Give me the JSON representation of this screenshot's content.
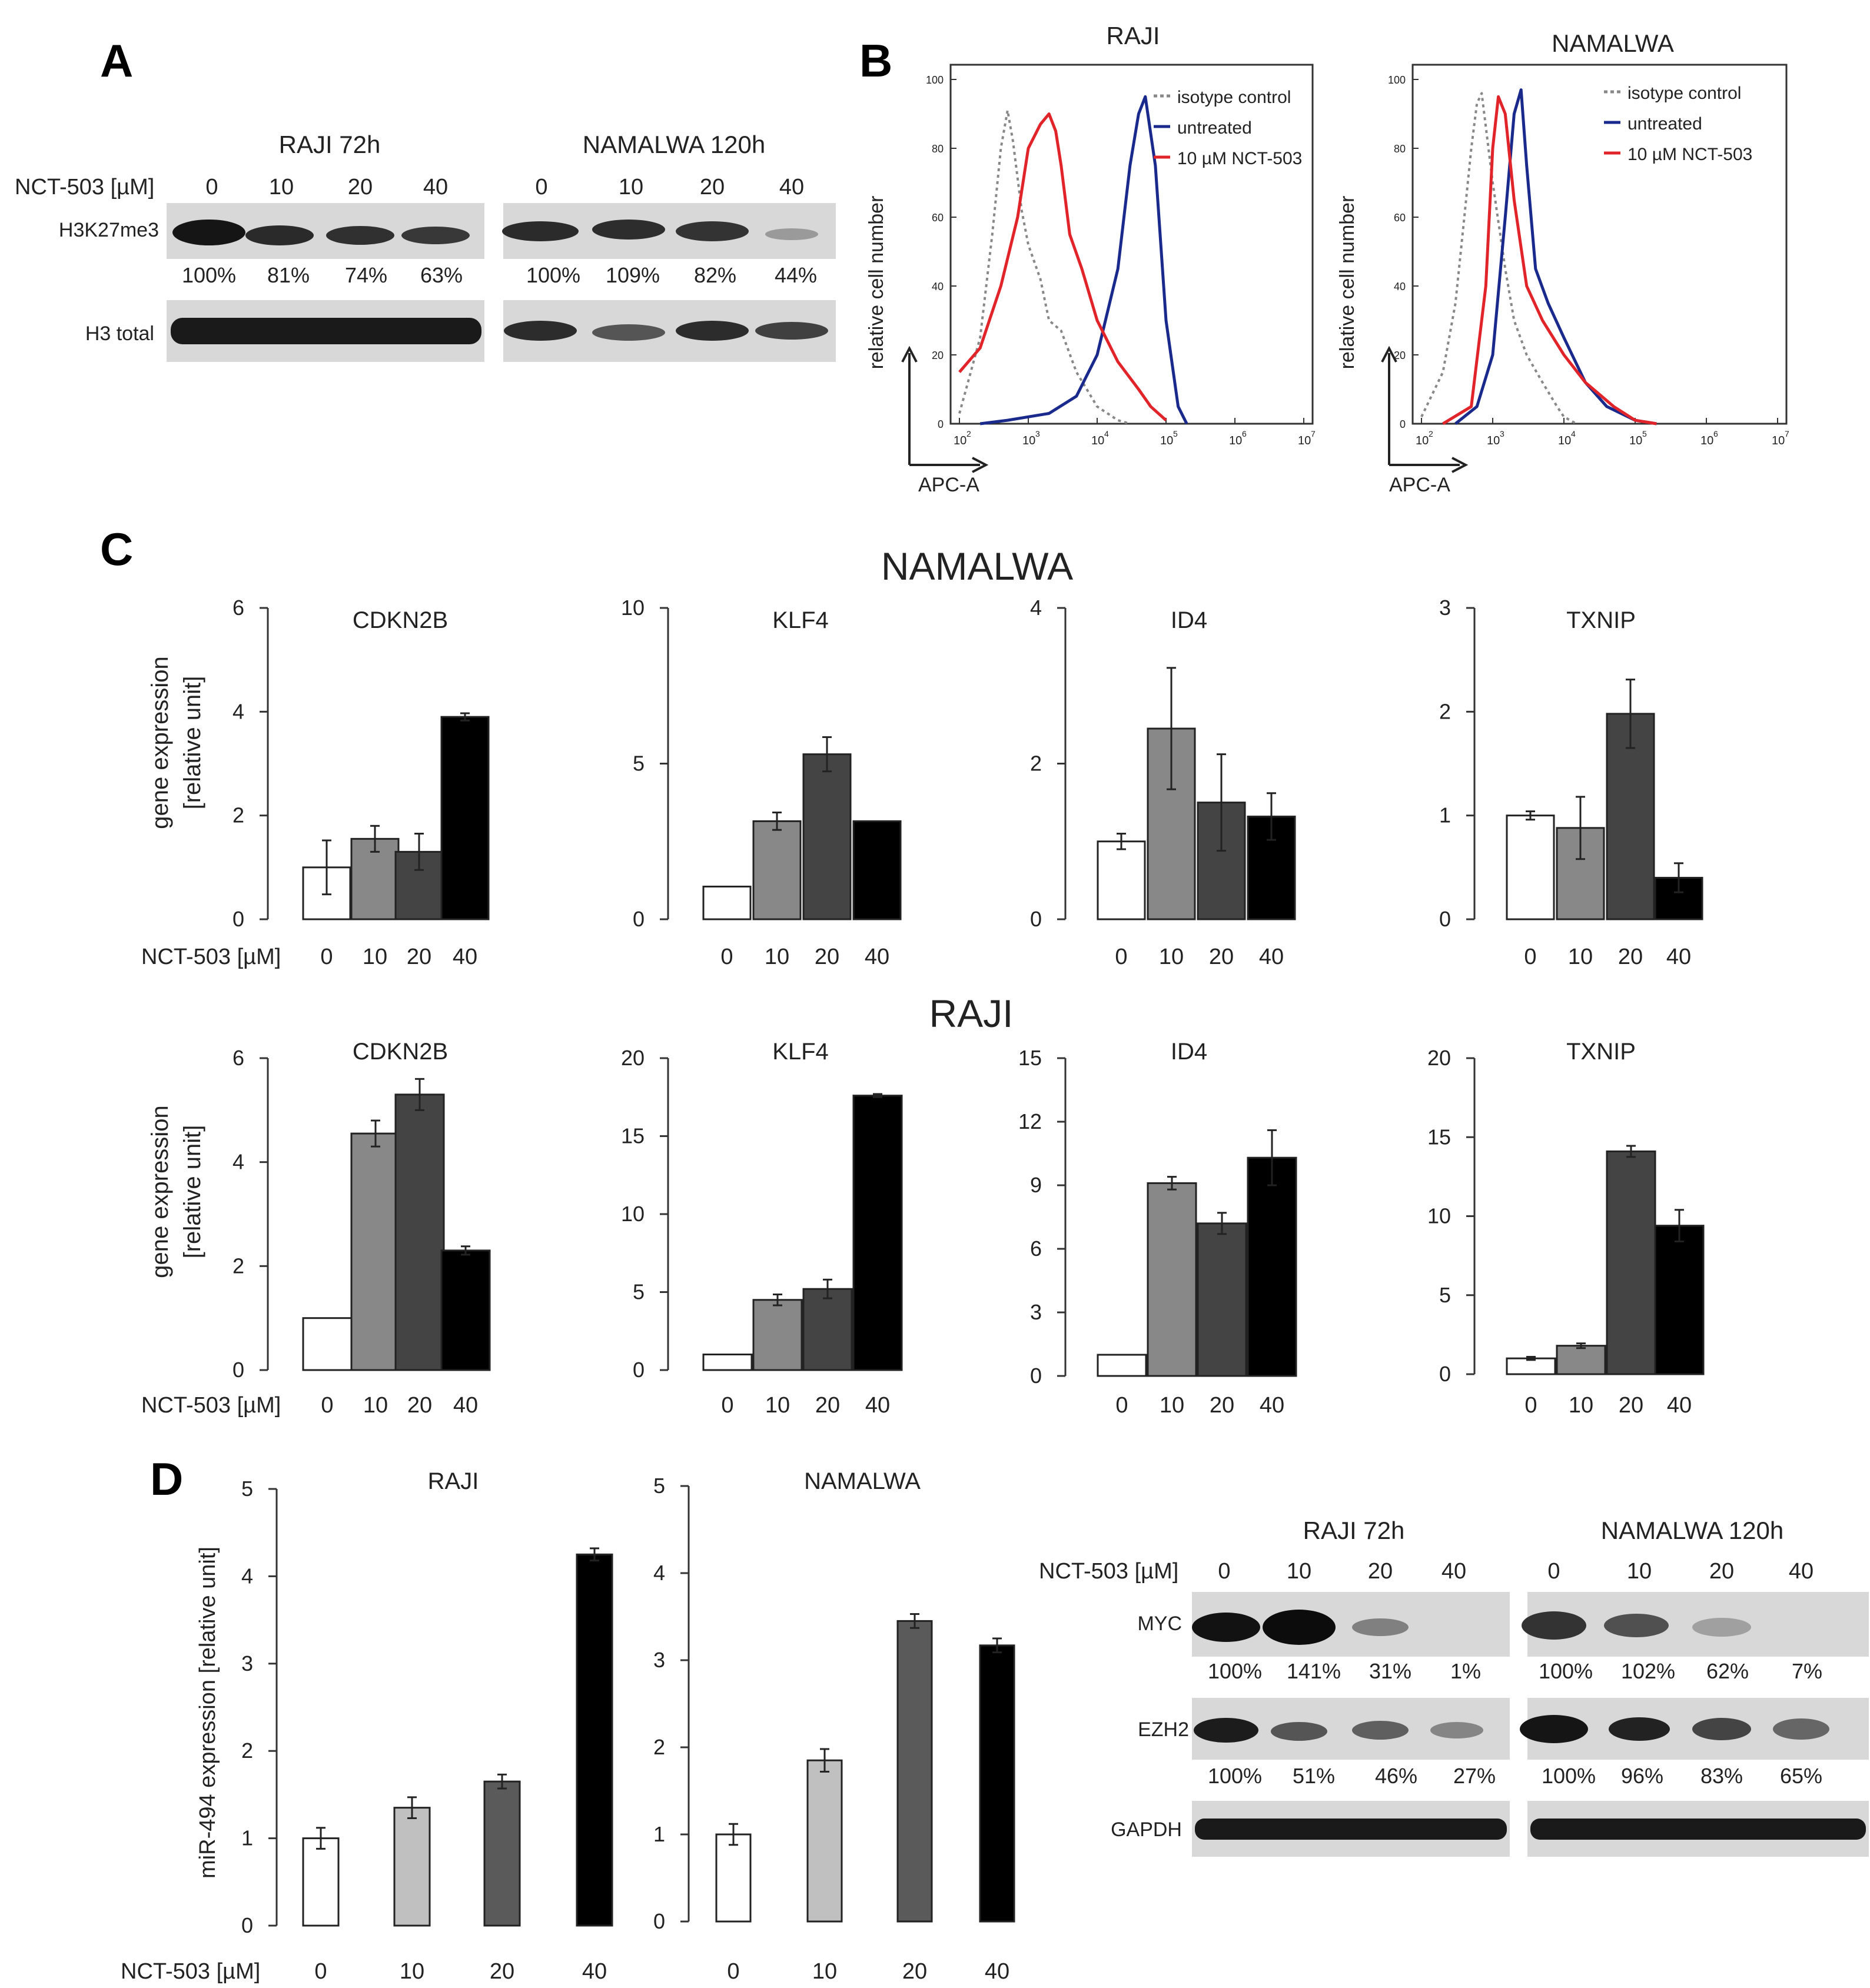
{
  "panels": {
    "a": "A",
    "b": "B",
    "c": "C",
    "d": "D"
  },
  "colors": {
    "red": "#e0242a",
    "blue": "#1a2a8c",
    "grey": "#888888",
    "bar0": "#ffffff",
    "bar10": "#888888",
    "bar20": "#444444",
    "bar40": "#000000",
    "dbar10": "#c0c0c0",
    "dbar20": "#5a5a5a"
  },
  "panelA": {
    "dose_label": "NCT-503 [µM]",
    "raji_title": "RAJI 72h",
    "namalwa_title": "NAMALWA 120h",
    "doses": [
      "0",
      "10",
      "20",
      "40"
    ],
    "row1_label": "H3K27me3",
    "row2_label": "H3 total",
    "raji_pct": [
      "100%",
      "81%",
      "74%",
      "63%"
    ],
    "namalwa_pct": [
      "100%",
      "109%",
      "82%",
      "44%"
    ]
  },
  "panelB": {
    "ylabel": "relative cell number",
    "xlabel": "APC-A",
    "yticks": [
      "0",
      "20",
      "40",
      "60",
      "80",
      "100"
    ],
    "xticks": [
      "10",
      "10",
      "10",
      "10",
      "10",
      "10"
    ],
    "xexp": [
      "2",
      "3",
      "4",
      "5",
      "6",
      "7"
    ],
    "legend": [
      "isotype control",
      "untreated",
      "10 µM NCT-503"
    ],
    "plots": [
      "RAJI",
      "NAMALWA"
    ]
  },
  "panelC": {
    "namalwa_title": "NAMALWA",
    "raji_title": "RAJI",
    "ylabel1": "gene expression",
    "ylabel2": "[relative unit]",
    "dose_label": "NCT-503 [µM]"
  },
  "panelD": {
    "ylabel": "miR-494 expression [relative unit]",
    "dose_label": "NCT-503 [µM]",
    "blot": {
      "raji_title": "RAJI 72h",
      "namalwa_title": "NAMALWA 120h",
      "dose_label": "NCT-503 [µM]",
      "doses": [
        "0",
        "10",
        "20",
        "40"
      ],
      "myc_label": "MYC",
      "ezh2_label": "EZH2",
      "gapdh_label": "GAPDH",
      "raji_myc": [
        "100%",
        "141%",
        "31%",
        "1%"
      ],
      "namalwa_myc": [
        "100%",
        "102%",
        "62%",
        "7%"
      ],
      "raji_ezh2": [
        "100%",
        "51%",
        "46%",
        "27%"
      ],
      "namalwa_ezh2": [
        "100%",
        "96%",
        "83%",
        "65%"
      ]
    }
  },
  "chart_data": [
    {
      "type": "line",
      "title": "RAJI",
      "xlabel": "APC-A",
      "ylabel": "relative cell number",
      "x_scale": "log10",
      "xlim": [
        100,
        10000000
      ],
      "ylim": [
        0,
        100
      ],
      "series": [
        {
          "name": "isotype control",
          "style": "dotted",
          "x": [
            100,
            200,
            300,
            400,
            500,
            600,
            800,
            1000,
            1500,
            2000,
            3000,
            5000,
            10000,
            20000,
            30000
          ],
          "y": [
            3,
            25,
            55,
            80,
            91,
            82,
            62,
            52,
            42,
            30,
            27,
            15,
            5,
            1,
            0
          ]
        },
        {
          "name": "untreated",
          "style": "solid",
          "x": [
            200,
            500,
            1000,
            2000,
            5000,
            10000,
            20000,
            30000,
            40000,
            50000,
            70000,
            100000,
            150000,
            200000
          ],
          "y": [
            0,
            1,
            2,
            3,
            8,
            20,
            45,
            75,
            90,
            95,
            75,
            30,
            5,
            0
          ]
        },
        {
          "name": "10 µM NCT-503",
          "style": "solid",
          "x": [
            100,
            200,
            400,
            700,
            1000,
            1500,
            2000,
            2500,
            3000,
            4000,
            6000,
            10000,
            20000,
            40000,
            60000,
            100000
          ],
          "y": [
            15,
            22,
            40,
            60,
            80,
            87,
            90,
            85,
            75,
            55,
            45,
            30,
            18,
            10,
            5,
            1
          ]
        }
      ]
    },
    {
      "type": "line",
      "title": "NAMALWA",
      "xlabel": "APC-A",
      "ylabel": "relative cell number",
      "x_scale": "log10",
      "xlim": [
        100,
        10000000
      ],
      "ylim": [
        0,
        100
      ],
      "series": [
        {
          "name": "isotype control",
          "style": "dotted",
          "x": [
            100,
            200,
            300,
            400,
            500,
            600,
            700,
            1000,
            1500,
            2000,
            3000,
            5000,
            8000,
            10000,
            15000
          ],
          "y": [
            2,
            15,
            35,
            60,
            80,
            93,
            96,
            70,
            45,
            30,
            20,
            12,
            5,
            2,
            0
          ]
        },
        {
          "name": "untreated",
          "style": "solid",
          "x": [
            300,
            600,
            1000,
            1500,
            2000,
            2500,
            3000,
            4000,
            6000,
            10000,
            20000,
            40000,
            100000,
            200000
          ],
          "y": [
            0,
            5,
            20,
            60,
            90,
            97,
            75,
            45,
            35,
            25,
            12,
            5,
            1,
            0
          ]
        },
        {
          "name": "10 µM NCT-503",
          "style": "solid",
          "x": [
            200,
            500,
            800,
            1000,
            1200,
            1500,
            2000,
            3000,
            5000,
            10000,
            20000,
            50000,
            100000,
            200000
          ],
          "y": [
            0,
            5,
            40,
            80,
            95,
            90,
            65,
            40,
            30,
            20,
            12,
            5,
            1,
            0
          ]
        }
      ]
    },
    {
      "type": "bar",
      "group": "NAMALWA",
      "title": "CDKN2B",
      "categories": [
        "0",
        "10",
        "20",
        "40"
      ],
      "values": [
        1.0,
        1.55,
        1.3,
        3.9
      ],
      "errors": [
        0.52,
        0.25,
        0.35,
        0.07
      ],
      "ylim": [
        0,
        6
      ],
      "yticks": [
        0,
        2,
        4,
        6
      ]
    },
    {
      "type": "bar",
      "group": "NAMALWA",
      "title": "KLF4",
      "categories": [
        "0",
        "10",
        "20",
        "40"
      ],
      "values": [
        1.05,
        3.15,
        5.3,
        3.15
      ],
      "errors": [
        0,
        0.28,
        0.55,
        0
      ],
      "ylim": [
        0,
        10
      ],
      "yticks": [
        0,
        5,
        10
      ]
    },
    {
      "type": "bar",
      "group": "NAMALWA",
      "title": "ID4",
      "categories": [
        "0",
        "10",
        "20",
        "40"
      ],
      "values": [
        1.0,
        2.45,
        1.5,
        1.32
      ],
      "errors": [
        0.1,
        0.78,
        0.62,
        0.3
      ],
      "ylim": [
        0,
        4
      ],
      "yticks": [
        0,
        2,
        4
      ]
    },
    {
      "type": "bar",
      "group": "NAMALWA",
      "title": "TXNIP",
      "categories": [
        "0",
        "10",
        "20",
        "40"
      ],
      "values": [
        1.0,
        0.88,
        1.98,
        0.4
      ],
      "errors": [
        0.04,
        0.3,
        0.33,
        0.14
      ],
      "ylim": [
        0,
        3
      ],
      "yticks": [
        0,
        1,
        2,
        3
      ]
    },
    {
      "type": "bar",
      "group": "RAJI",
      "title": "CDKN2B",
      "categories": [
        "0",
        "10",
        "20",
        "40"
      ],
      "values": [
        1.0,
        4.55,
        5.3,
        2.3
      ],
      "errors": [
        0,
        0.25,
        0.3,
        0.08
      ],
      "ylim": [
        0,
        6
      ],
      "yticks": [
        0,
        2,
        4,
        6
      ]
    },
    {
      "type": "bar",
      "group": "RAJI",
      "title": "KLF4",
      "categories": [
        "0",
        "10",
        "20",
        "40"
      ],
      "values": [
        1.0,
        4.5,
        5.2,
        17.6
      ],
      "errors": [
        0,
        0.35,
        0.6,
        0.1
      ],
      "ylim": [
        0,
        20
      ],
      "yticks": [
        0,
        5,
        10,
        15,
        20
      ]
    },
    {
      "type": "bar",
      "group": "RAJI",
      "title": "ID4",
      "categories": [
        "0",
        "10",
        "20",
        "40"
      ],
      "values": [
        1.0,
        9.1,
        7.2,
        10.3
      ],
      "errors": [
        0,
        0.3,
        0.5,
        1.3
      ],
      "ylim": [
        0,
        15
      ],
      "yticks": [
        0,
        3,
        6,
        9,
        12,
        15
      ]
    },
    {
      "type": "bar",
      "group": "RAJI",
      "title": "TXNIP",
      "categories": [
        "0",
        "10",
        "20",
        "40"
      ],
      "values": [
        1.0,
        1.8,
        14.1,
        9.4
      ],
      "errors": [
        0.1,
        0.15,
        0.35,
        1.0
      ],
      "ylim": [
        0,
        20
      ],
      "yticks": [
        0,
        5,
        10,
        15,
        20
      ]
    },
    {
      "type": "bar",
      "group": "D",
      "title": "RAJI",
      "categories": [
        "0",
        "10",
        "20",
        "40"
      ],
      "values": [
        1.0,
        1.35,
        1.65,
        4.25
      ],
      "errors": [
        0.12,
        0.12,
        0.08,
        0.07
      ],
      "ylim": [
        0,
        5
      ],
      "yticks": [
        0,
        1,
        2,
        3,
        4,
        5
      ]
    },
    {
      "type": "bar",
      "group": "D",
      "title": "NAMALWA",
      "categories": [
        "0",
        "10",
        "20",
        "40"
      ],
      "values": [
        1.0,
        1.85,
        3.45,
        3.17
      ],
      "errors": [
        0.12,
        0.13,
        0.08,
        0.08
      ],
      "ylim": [
        0,
        5
      ],
      "yticks": [
        0,
        1,
        2,
        3,
        4,
        5
      ]
    }
  ]
}
